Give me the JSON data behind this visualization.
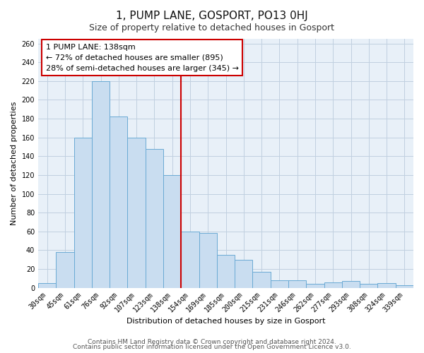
{
  "title": "1, PUMP LANE, GOSPORT, PO13 0HJ",
  "subtitle": "Size of property relative to detached houses in Gosport",
  "xlabel": "Distribution of detached houses by size in Gosport",
  "ylabel": "Number of detached properties",
  "bar_labels": [
    "30sqm",
    "45sqm",
    "61sqm",
    "76sqm",
    "92sqm",
    "107sqm",
    "123sqm",
    "138sqm",
    "154sqm",
    "169sqm",
    "185sqm",
    "200sqm",
    "215sqm",
    "231sqm",
    "246sqm",
    "262sqm",
    "277sqm",
    "293sqm",
    "308sqm",
    "324sqm",
    "339sqm"
  ],
  "bar_values": [
    5,
    38,
    160,
    220,
    182,
    160,
    148,
    120,
    60,
    58,
    35,
    30,
    17,
    8,
    8,
    4,
    6,
    7,
    4,
    5,
    3
  ],
  "bar_color": "#c9ddf0",
  "bar_edge_color": "#6aaad4",
  "marker_index": 7,
  "marker_color": "#cc0000",
  "ylim": [
    0,
    265
  ],
  "yticks": [
    0,
    20,
    40,
    60,
    80,
    100,
    120,
    140,
    160,
    180,
    200,
    220,
    240,
    260
  ],
  "annotation_title": "1 PUMP LANE: 138sqm",
  "annotation_line1": "← 72% of detached houses are smaller (895)",
  "annotation_line2": "28% of semi-detached houses are larger (345) →",
  "footer_line1": "Contains HM Land Registry data © Crown copyright and database right 2024.",
  "footer_line2": "Contains public sector information licensed under the Open Government Licence v3.0.",
  "bg_color": "#ffffff",
  "plot_bg_color": "#e8f0f8",
  "grid_color": "#c0d0e0",
  "title_fontsize": 11,
  "subtitle_fontsize": 9,
  "axis_label_fontsize": 8,
  "tick_fontsize": 7,
  "annotation_fontsize": 8,
  "footer_fontsize": 6.5
}
